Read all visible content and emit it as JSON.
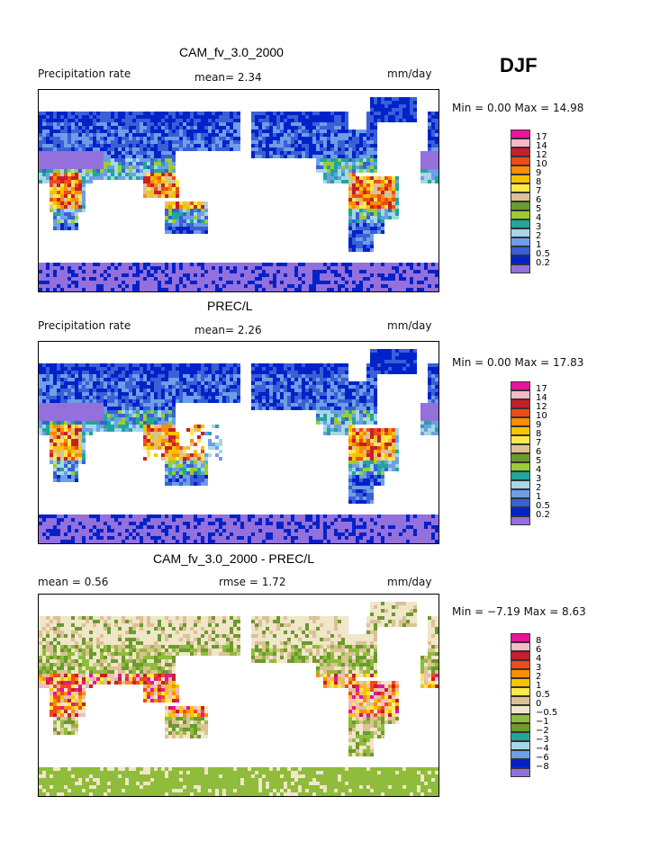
{
  "season": "DJF",
  "panels": [
    {
      "title": "CAM_fv_3.0_2000",
      "left_label": "Precipitation rate",
      "mid_label": "mean=   2.34",
      "unit": "mm/day",
      "minmax": "Min =   0.00 Max =   14.98",
      "levels": [
        "17",
        "14",
        "12",
        "10",
        "9",
        "8",
        "7",
        "6",
        "5",
        "4",
        "3",
        "2",
        "1",
        "0.5",
        "0.2"
      ],
      "palette": [
        "#e8149b",
        "#f7b8c7",
        "#c61f2a",
        "#ee4b18",
        "#ff8c00",
        "#f5c300",
        "#ffe84a",
        "#dcc196",
        "#6b9a2e",
        "#9acd32",
        "#20a69a",
        "#a5d8e6",
        "#6e9ee6",
        "#3a5fd6",
        "#0022c8",
        "#9370db"
      ],
      "pattern": "model"
    },
    {
      "title": "PREC/L",
      "left_label": "Precipitation rate",
      "mid_label": "mean=   2.26",
      "unit": "mm/day",
      "minmax": "Min =   0.00 Max =   17.83",
      "levels": [
        "17",
        "14",
        "12",
        "10",
        "9",
        "8",
        "7",
        "6",
        "5",
        "4",
        "3",
        "2",
        "1",
        "0.5",
        "0.2"
      ],
      "palette": [
        "#e8149b",
        "#f7b8c7",
        "#c61f2a",
        "#ee4b18",
        "#ff8c00",
        "#f5c300",
        "#ffe84a",
        "#dcc196",
        "#6b9a2e",
        "#9acd32",
        "#20a69a",
        "#a5d8e6",
        "#6e9ee6",
        "#3a5fd6",
        "#0022c8",
        "#9370db"
      ],
      "pattern": "obs"
    },
    {
      "title": "CAM_fv_3.0_2000 - PREC/L",
      "left_label": "mean =    0.56",
      "mid_label": "rmse =    1.72",
      "unit": "mm/day",
      "minmax": "Min =  −7.19 Max =    8.63",
      "levels": [
        "8",
        "6",
        "4",
        "3",
        "2",
        "1",
        "0.5",
        "0",
        "−0.5",
        "−1",
        "−2",
        "−3",
        "−4",
        "−6",
        "−8"
      ],
      "palette": [
        "#e8149b",
        "#f7b8c7",
        "#c61f2a",
        "#ee4b18",
        "#ff8c00",
        "#f5c300",
        "#ffe84a",
        "#dcc196",
        "#f0e6c8",
        "#8fbc3a",
        "#6b9a2e",
        "#20a69a",
        "#a5d8e6",
        "#6e9ee6",
        "#0022c8",
        "#9370db"
      ],
      "pattern": "diff"
    }
  ]
}
